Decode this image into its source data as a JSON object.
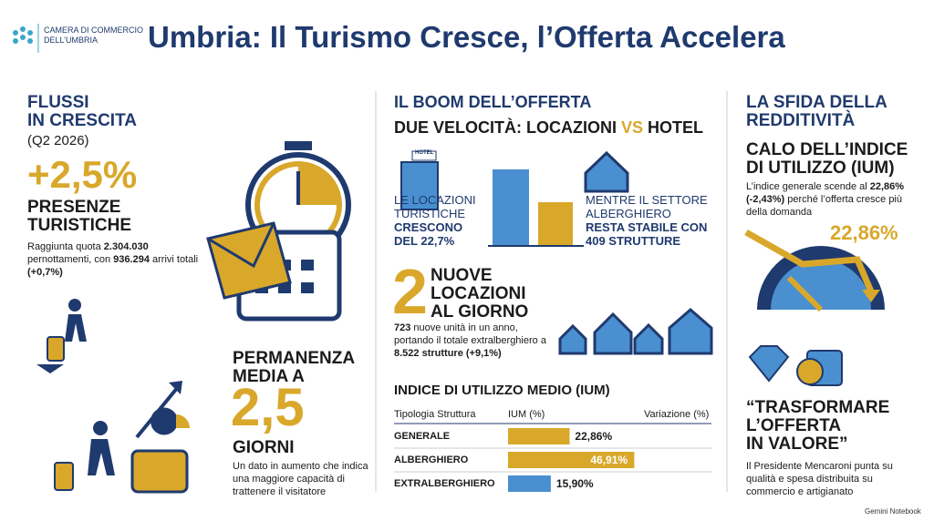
{
  "header": {
    "org": [
      "CAMERA DI COMMERCIO",
      "DELL’UMBRIA"
    ],
    "title": "Umbria: Il Turismo Cresce, l’Offerta Accelera"
  },
  "flussi": {
    "heading": [
      "FLUSSI",
      "IN CRESCITA"
    ],
    "period": "(Q2 2026)",
    "big": "+2,5%",
    "label": [
      "PRESENZE",
      "TURISTICHE"
    ],
    "body": [
      "Raggiunta quota ",
      "2.304.030",
      " pernottamenti, con ",
      "936.294",
      " arrivi totali ",
      "(+0,7%)"
    ]
  },
  "permanenza": {
    "heading": [
      "PERMANENZA",
      "MEDIA A"
    ],
    "big": "2,5",
    "unit": "GIORNI",
    "body": "Un dato in aumento che indica una maggiore capacità di trattenere il visitatore"
  },
  "offerta": {
    "heading": "IL BOOM DELL’OFFERTA",
    "subheading": [
      "DUE VELOCITÀ: LOCAZIONI ",
      "VS",
      " HOTEL"
    ],
    "left": {
      "icon": "HOTEL",
      "light": [
        "LE LOCAZIONI",
        "TURISTICHE"
      ],
      "bold": [
        "CRESCONO",
        "DEL 22,7%"
      ]
    },
    "right": {
      "light": [
        "MENTRE IL SETTORE",
        "ALBERGHIERO"
      ],
      "bold": [
        "RESTA STABILE CON",
        "409 STRUTTURE"
      ]
    },
    "daily": {
      "big": "2",
      "label": [
        "NUOVE",
        "LOCAZIONI",
        "AL GIORNO"
      ],
      "body": [
        "723",
        " nuove unità in un anno, portando il totale extralberghiero a ",
        "8.522 strutture (+9,1%)"
      ]
    }
  },
  "ium": {
    "title": "INDICE DI UTILIZZO MEDIO (IUM)",
    "columns": [
      "Tipologia Struttura",
      "IUM (%)",
      "Variazione (%)"
    ],
    "rows": [
      {
        "label": "GENERALE",
        "value": 22.86,
        "value_label": "22,86%"
      },
      {
        "label": "ALBERGHIERO",
        "value": 46.91,
        "value_label": "46,91%"
      },
      {
        "label": "EXTRALBERGHIERO",
        "value": 15.9,
        "value_label": "15,90%"
      }
    ]
  },
  "redditivita": {
    "heading": [
      "LA SFIDA DELLA",
      "REDDITIVITÀ"
    ],
    "subheading": [
      "CALO DELL’INDICE",
      "DI UTILIZZO (IUM)"
    ],
    "body": [
      "L’indice generale scende al ",
      "22,86% (-2,43%)",
      " perché l’offerta cresce più della domanda"
    ],
    "gauge_label": "22,86%",
    "quote": [
      "“TRASFORMARE",
      "L’OFFERTA",
      "IN VALORE”"
    ],
    "quote_body": "Il Presidente Mencaroni punta su qualità e spesa distribuita su commercio e artigianato"
  },
  "footer": "Gemini Notebook"
}
